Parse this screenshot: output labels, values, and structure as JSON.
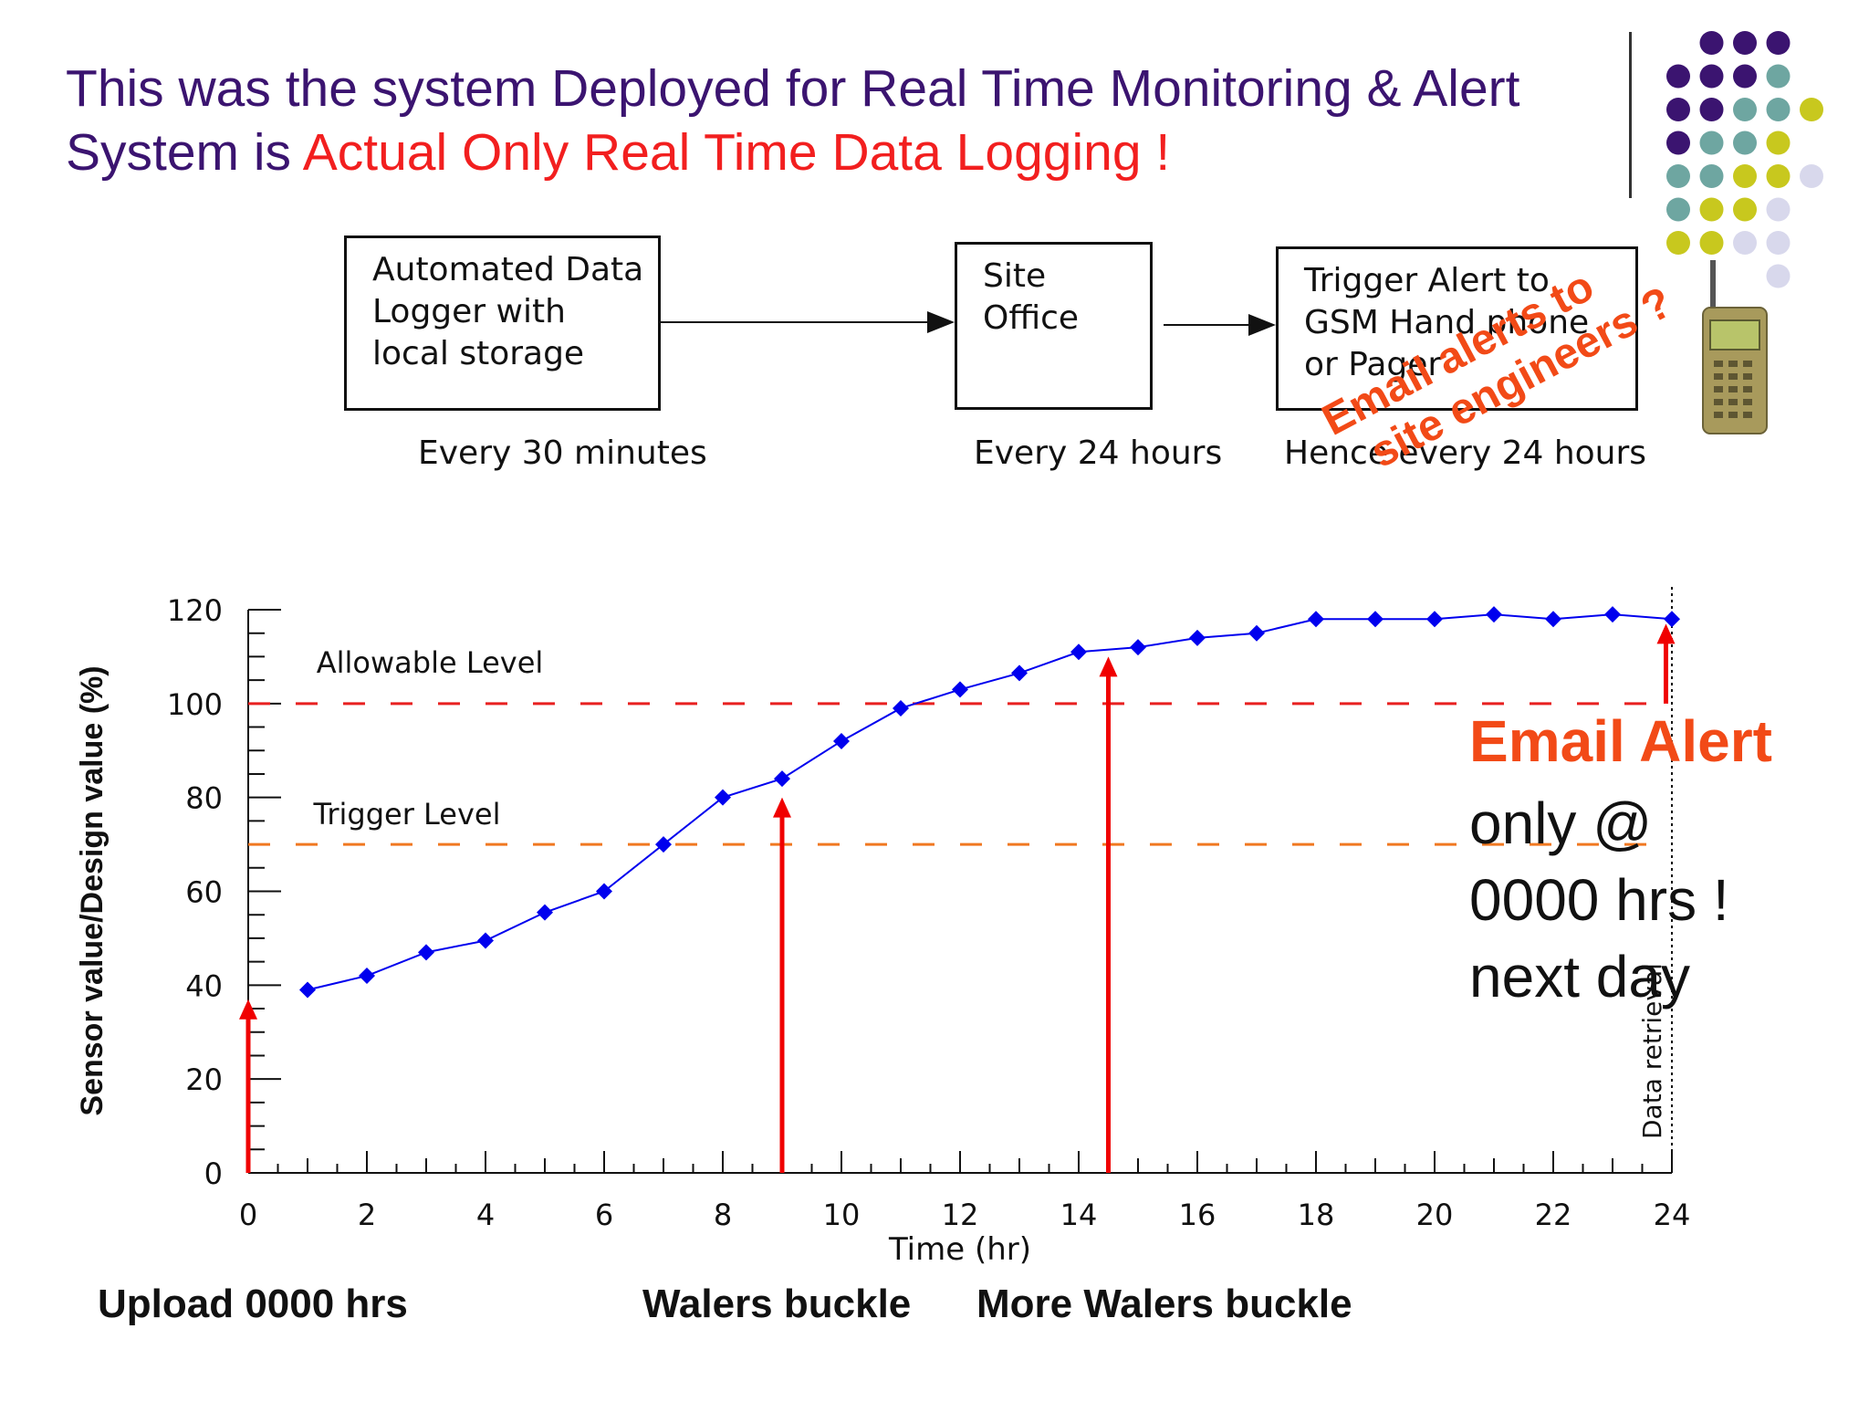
{
  "title": {
    "line1": "This was the system Deployed for Real Time Monitoring & Alert",
    "line2_prefix": "System is ",
    "line2_highlight": "Actual Only Real Time Data Logging !"
  },
  "flow": {
    "box1": [
      "Automated Data",
      "Logger with",
      "local storage"
    ],
    "box2": [
      "Site",
      "Office"
    ],
    "box3": [
      "Trigger Alert to",
      "GSM Hand phone",
      "or Pager"
    ],
    "caption1": "Every 30 minutes",
    "caption2": "Every 24 hours",
    "caption3": "Hence every 24 hours"
  },
  "email_question": [
    "Email alerts to",
    "site engineers ?"
  ],
  "alert": {
    "headline": "Email Alert",
    "lines": [
      "only @",
      "0000 hrs !",
      "next day"
    ]
  },
  "bottom_labels": {
    "upload": "Upload 0000 hrs",
    "walers": "Walers buckle",
    "more_walers": "More Walers buckle"
  },
  "colors": {
    "title": "#3b1470",
    "highlight": "#f21f1f",
    "series": "#0000ee",
    "allowable": "#e82020",
    "trigger": "#f07820",
    "arrow": "#f00000",
    "alert": "#f24a17"
  },
  "chart_data": {
    "type": "line",
    "xlabel": "Time (hr)",
    "ylabel": "Sensor value/Design value (%)",
    "xlim": [
      0,
      24
    ],
    "ylim": [
      0,
      120
    ],
    "xticks": [
      0,
      2,
      4,
      6,
      8,
      10,
      12,
      14,
      16,
      18,
      20,
      22,
      24
    ],
    "yticks": [
      0,
      20,
      40,
      60,
      80,
      100,
      120
    ],
    "series": [
      {
        "x": [
          1,
          2,
          3,
          4,
          5,
          6,
          7,
          8,
          9,
          10,
          11,
          12,
          13,
          14,
          15,
          16,
          17,
          18,
          19,
          20,
          21,
          22,
          23,
          24
        ],
        "values": [
          39,
          42,
          47,
          49.5,
          55.5,
          60,
          70,
          80,
          84,
          92,
          99,
          103,
          106.5,
          111,
          112,
          114,
          115,
          118,
          118,
          118,
          119,
          118,
          119,
          118
        ]
      }
    ],
    "reference_lines": [
      {
        "label": "Allowable Level",
        "y": 100
      },
      {
        "label": "Trigger Level",
        "y": 70
      }
    ],
    "vertical_marker": {
      "label": "Data retrieval",
      "x": 24
    },
    "arrows": [
      {
        "x": 0,
        "y_from": 0,
        "y_to": 37
      },
      {
        "x": 9,
        "y_from": 0,
        "y_to": 80
      },
      {
        "x": 14.5,
        "y_from": 0,
        "y_to": 110
      },
      {
        "x": 23.9,
        "y_from": 100,
        "y_to": 117
      }
    ]
  }
}
